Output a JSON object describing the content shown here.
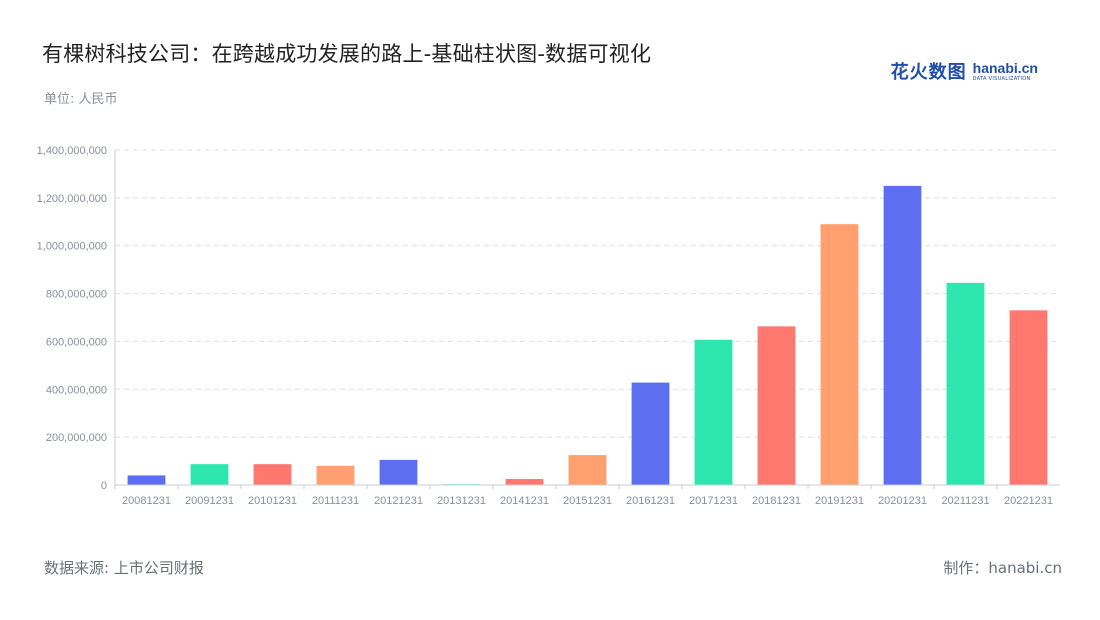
{
  "header": {
    "title": "有棵树科技公司：在跨越成功发展的路上-基础柱状图-数据可视化",
    "unit": "单位: 人民币"
  },
  "logo": {
    "cn": "花火数图",
    "en": "hanabi.cn",
    "en_sub": "DATA VISUALIZATION"
  },
  "footer": {
    "source": "数据来源: 上市公司财报",
    "maker": "制作：hanabi.cn"
  },
  "chart_data": {
    "type": "bar",
    "title": "有棵树科技公司：在跨越成功发展的路上-基础柱状图-数据可视化",
    "xlabel": "",
    "ylabel": "",
    "ylim": [
      0,
      1400000000
    ],
    "yticks": [
      0,
      200000000,
      400000000,
      600000000,
      800000000,
      1000000000,
      1200000000,
      1400000000
    ],
    "ytick_labels": [
      "0",
      "200,000,000",
      "400,000,000",
      "600,000,000",
      "800,000,000",
      "1,000,000,000",
      "1,200,000,000",
      "1,400,000,000"
    ],
    "grid": true,
    "categories": [
      "20081231",
      "20091231",
      "20101231",
      "20111231",
      "20121231",
      "20131231",
      "20141231",
      "20151231",
      "20161231",
      "20171231",
      "20181231",
      "20191231",
      "20201231",
      "20211231",
      "20221231"
    ],
    "values": [
      40000000,
      87000000,
      87000000,
      80000000,
      105000000,
      3000000,
      25000000,
      125000000,
      428000000,
      607000000,
      663000000,
      1090000000,
      1250000000,
      845000000,
      730000000
    ],
    "colors": [
      "#5b6ff0",
      "#2ee6b0",
      "#ff7870",
      "#ffa06e"
    ]
  }
}
